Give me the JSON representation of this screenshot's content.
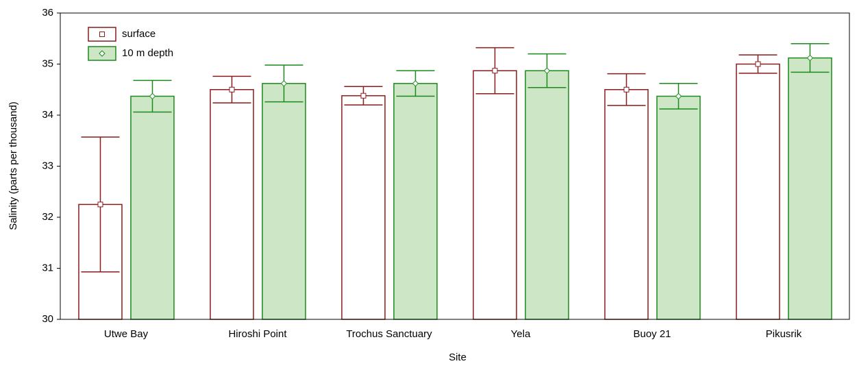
{
  "chart_data": {
    "type": "bar",
    "xlabel": "Site",
    "ylabel": "Salinity (parts per thousand)",
    "categories": [
      "Utwe Bay",
      "Hiroshi Point",
      "Trochus Sanctuary",
      "Yela",
      "Buoy 21",
      "Pikusrik"
    ],
    "series": [
      {
        "name": "surface",
        "color": "#8b1a1a",
        "fill": "#ffffff",
        "values": [
          32.25,
          34.5,
          34.38,
          34.87,
          34.5,
          35.0
        ],
        "errors": [
          1.32,
          0.26,
          0.18,
          0.45,
          0.31,
          0.18
        ]
      },
      {
        "name": "10 m depth",
        "color": "#1a8a1a",
        "fill": "#cde6c6",
        "values": [
          34.37,
          34.62,
          34.62,
          34.87,
          34.37,
          35.12
        ],
        "errors": [
          0.31,
          0.36,
          0.25,
          0.33,
          0.25,
          0.28
        ]
      }
    ],
    "ylim": [
      30,
      36
    ],
    "yticks": [
      30,
      31,
      32,
      33,
      34,
      35,
      36
    ],
    "legend": "upper left"
  }
}
